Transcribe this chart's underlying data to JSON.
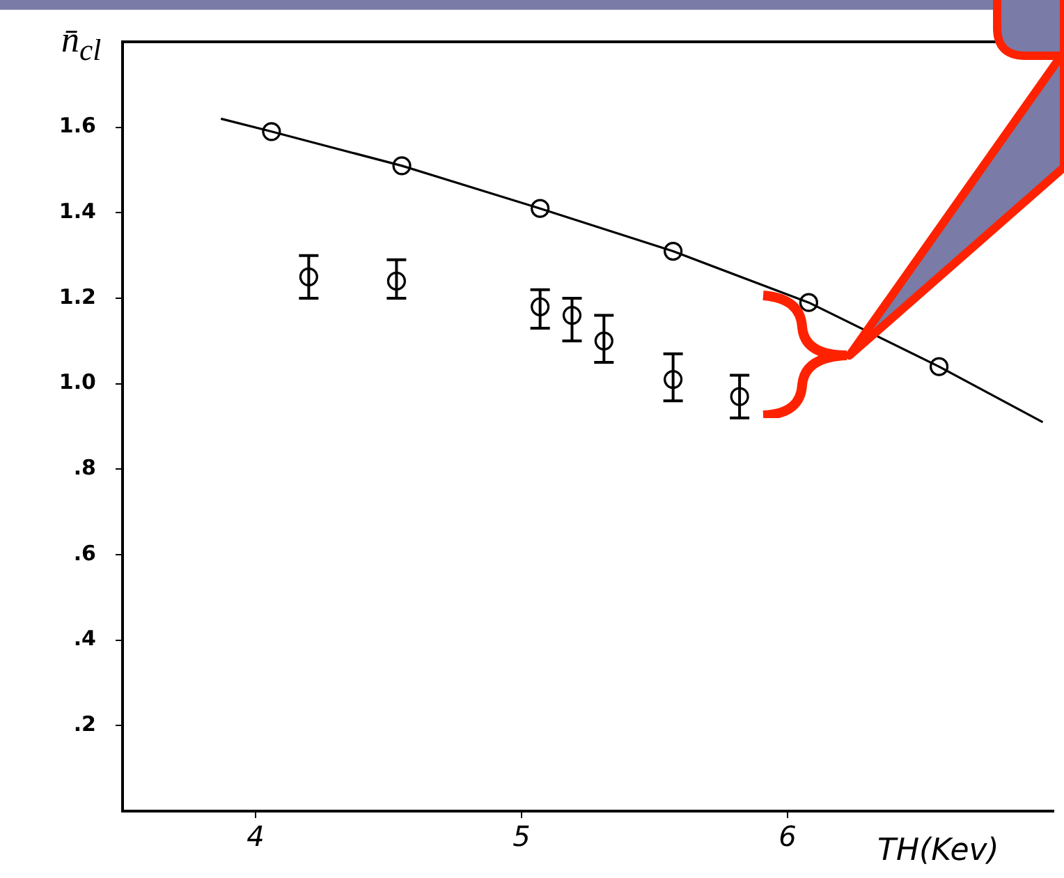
{
  "chart_data": {
    "type": "scatter",
    "xlabel": "TH(Kev)",
    "ylabel": "n̄$_{cl}$",
    "xlim": [
      3.5,
      7.0
    ],
    "xticks": [
      4,
      5,
      6
    ],
    "ylim": [
      0,
      1.8
    ],
    "yticks": [
      {
        "value": 0.2,
        "label": ".2"
      },
      {
        "value": 0.4,
        "label": ".4"
      },
      {
        "value": 0.6,
        "label": ".6"
      },
      {
        "value": 0.8,
        "label": ".8"
      },
      {
        "value": 1.0,
        "label": "1.0"
      },
      1.2,
      1.4,
      1.6
    ],
    "grid": false,
    "legend": false,
    "series": [
      {
        "type": "scatter",
        "color": "#000000",
        "marker": "circle",
        "x": [
          4.06,
          4.55,
          5.07,
          5.57,
          6.08,
          6.57
        ],
        "values": [
          1.59,
          1.51,
          1.41,
          1.31,
          1.19,
          1.04
        ]
      },
      {
        "type": "line",
        "color": "#000000",
        "marker": "none",
        "line_style": "solid",
        "x": [
          3.87,
          4.06,
          4.55,
          5.07,
          5.57,
          6.08,
          6.57,
          6.96
        ],
        "values": [
          1.62,
          1.59,
          1.51,
          1.41,
          1.31,
          1.19,
          1.04,
          0.91
        ]
      },
      {
        "type": "scatter",
        "color": "#000000",
        "marker": "circle",
        "x": [
          4.2,
          4.53,
          5.07,
          5.19,
          5.31,
          5.57,
          5.82
        ],
        "values": [
          1.25,
          1.24,
          1.18,
          1.16,
          1.1,
          1.01,
          0.97
        ],
        "errors": [
          [
            1.2,
            1.3
          ],
          [
            1.2,
            1.29
          ],
          [
            1.13,
            1.22
          ],
          [
            1.1,
            1.2
          ],
          [
            1.05,
            1.16
          ],
          [
            0.96,
            1.07
          ],
          [
            0.92,
            1.02
          ]
        ]
      }
    ]
  }
}
